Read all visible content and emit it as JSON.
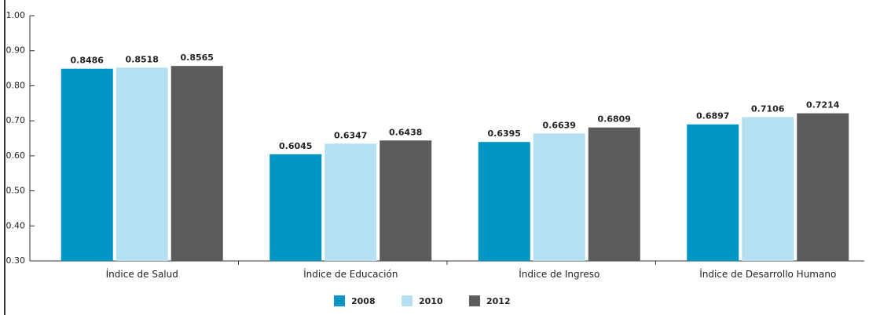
{
  "chart_data": {
    "type": "bar",
    "categories": [
      "Índice de Salud",
      "Índice de Educación",
      "Índice de Ingreso",
      "Índice de Desarrollo Humano"
    ],
    "series": [
      {
        "name": "2008",
        "color": "#0096c4",
        "values": [
          0.8486,
          0.6045,
          0.6395,
          0.6897
        ]
      },
      {
        "name": "2010",
        "color": "#b5e0f1",
        "values": [
          0.8518,
          0.6347,
          0.6639,
          0.7106
        ]
      },
      {
        "name": "2012",
        "color": "#5b5b5d",
        "values": [
          0.8565,
          0.6438,
          0.6809,
          0.7214
        ]
      }
    ],
    "ylim": [
      0.3,
      1.0
    ],
    "yticks": [
      {
        "value": 0.3,
        "label": "0.30"
      },
      {
        "value": 0.4,
        "label": "0.40"
      },
      {
        "value": 0.5,
        "label": "0.50"
      },
      {
        "value": 0.6,
        "label": "0.60"
      },
      {
        "value": 0.7,
        "label": "0.70"
      },
      {
        "value": 0.8,
        "label": "0.80"
      },
      {
        "value": 0.9,
        "label": "0.90"
      },
      {
        "value": 1.0,
        "label": "1.00"
      }
    ],
    "grid": false,
    "legend": "bottom"
  }
}
